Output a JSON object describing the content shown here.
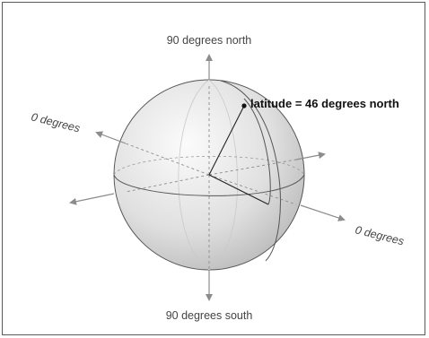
{
  "labels": {
    "north": "90 degrees north",
    "south": "90 degrees south",
    "left_equator": "0 degrees",
    "right_equator": "0 degrees",
    "latitude": "latitude = 46 degrees north"
  },
  "colors": {
    "sphere_light": "#f5f5f5",
    "sphere_dark": "#bdbdbd",
    "arrow": "#8c8c8c",
    "outline": "#444444",
    "text": "#444444"
  }
}
